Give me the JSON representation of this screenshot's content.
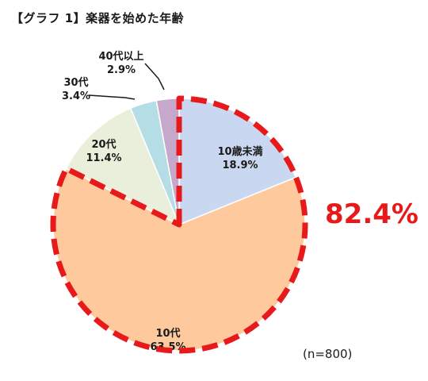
{
  "chart_data": {
    "type": "pie",
    "title": "【グラフ 1】楽器を始めた年齢",
    "start_angle_deg": 0,
    "direction": "clockwise",
    "slices": [
      {
        "label": "10歳未満",
        "value_text": "18.9%",
        "value": 18.9,
        "color": "#c9d8f0"
      },
      {
        "label": "10代",
        "value_text": "63.5%",
        "value": 63.5,
        "color": "#fdc99d"
      },
      {
        "label": "20代",
        "value_text": "11.4%",
        "value": 11.4,
        "color": "#eaefdc"
      },
      {
        "label": "30代",
        "value_text": "3.4%",
        "value": 3.4,
        "color": "#b5dde6"
      },
      {
        "label": "40代以上",
        "value_text": "2.9%",
        "value": 2.9,
        "color": "#c5a8cc"
      }
    ],
    "highlight": {
      "label": "82.4%",
      "slices": [
        "10歳未満",
        "10代"
      ],
      "color": "#e8191a"
    },
    "sample_size": "(n=800)"
  }
}
